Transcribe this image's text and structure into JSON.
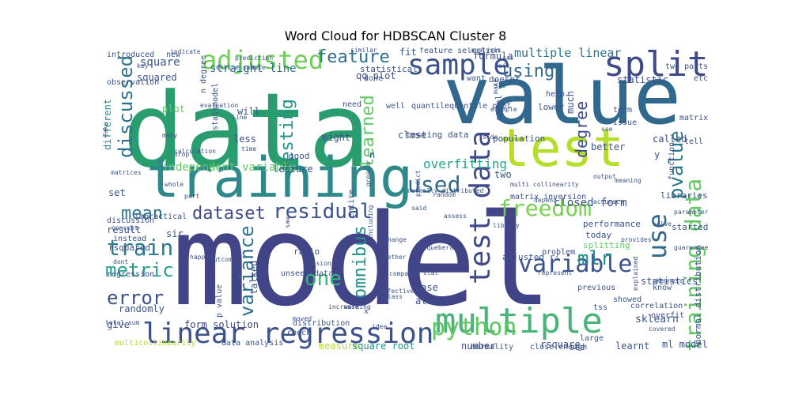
{
  "title": "Word Cloud for HDBSCAN Cluster 8",
  "words": [
    {
      "text": "model",
      "color": "#414487"
    },
    {
      "text": "data",
      "color": "#2a9d6e"
    },
    {
      "text": "value",
      "color": "#31688e"
    },
    {
      "text": "training",
      "color": "#2e8a8a"
    },
    {
      "text": "test",
      "color": "#b5de2b"
    },
    {
      "text": "linear regression",
      "color": "#3b528b"
    },
    {
      "text": "multiple",
      "color": "#4ab37a"
    },
    {
      "text": "split",
      "color": "#3e4a89"
    },
    {
      "text": "sample",
      "color": "#3b528b"
    },
    {
      "text": "adjusted",
      "color": "#6ece58"
    },
    {
      "text": "feature",
      "color": "#2c728e"
    },
    {
      "text": "discussed",
      "color": "#2c728e"
    },
    {
      "text": "testing",
      "color": "#21918c"
    },
    {
      "text": "learned",
      "color": "#5ec962"
    },
    {
      "text": "using",
      "color": "#31688e"
    },
    {
      "text": "degree",
      "color": "#3e4a89"
    },
    {
      "text": "use",
      "color": "#31688e"
    },
    {
      "text": "pvalue",
      "color": "#2a788e"
    },
    {
      "text": "training data",
      "color": "#5ec962"
    },
    {
      "text": "test data",
      "color": "#3e4a89"
    },
    {
      "text": "freedom",
      "color": "#7ad151"
    },
    {
      "text": "used",
      "color": "#31688e"
    },
    {
      "text": "residual",
      "color": "#3b528b"
    },
    {
      "text": "dataset",
      "color": "#3e4a89"
    },
    {
      "text": "mean",
      "color": "#2c728e"
    },
    {
      "text": "train",
      "color": "#287c8e"
    },
    {
      "text": "metric",
      "color": "#2a9d8f"
    },
    {
      "text": "error",
      "color": "#3b528b"
    },
    {
      "text": "variance",
      "color": "#2c728e"
    },
    {
      "text": "one",
      "color": "#35b779"
    },
    {
      "text": "omnibus",
      "color": "#21918c"
    },
    {
      "text": "variable",
      "color": "#3b528b"
    },
    {
      "text": "mlr",
      "color": "#21918c"
    },
    {
      "text": "python",
      "color": "#5ec962"
    },
    {
      "text": "multiple linear",
      "color": "#2c728e"
    },
    {
      "text": "overfitting",
      "color": "#20a486"
    },
    {
      "text": "straight line",
      "color": "#2c728e"
    },
    {
      "text": "square",
      "color": "#3b528b"
    },
    {
      "text": "squared",
      "color": "#3b528b"
    },
    {
      "text": "independent variable",
      "color": "#5ec962"
    },
    {
      "text": "closed form",
      "color": "#3b528b"
    },
    {
      "text": "form solution",
      "color": "#414487"
    },
    {
      "text": "randomly",
      "color": "#3b528b"
    },
    {
      "text": "multicollinearity",
      "color": "#b5de2b"
    },
    {
      "text": "data analysis",
      "color": "#3b528b"
    },
    {
      "text": "measure",
      "color": "#b5de2b"
    },
    {
      "text": "square root",
      "color": "#21918c"
    },
    {
      "text": "number",
      "color": "#3b528b"
    },
    {
      "text": "rsquare",
      "color": "#3b528b"
    },
    {
      "text": "learnt",
      "color": "#3b528b"
    },
    {
      "text": "sklearn",
      "color": "#3b528b"
    },
    {
      "text": "normal distribution",
      "color": "#3b528b"
    },
    {
      "text": "performance",
      "color": "#3b528b"
    },
    {
      "text": "splitting",
      "color": "#5ec962"
    },
    {
      "text": "today",
      "color": "#3b528b"
    },
    {
      "text": "libraries",
      "color": "#3b528b"
    },
    {
      "text": "started",
      "color": "#3b528b"
    },
    {
      "text": "lecture",
      "color": "#3b528b"
    },
    {
      "text": "good",
      "color": "#3b528b"
    },
    {
      "text": "might",
      "color": "#3b528b"
    },
    {
      "text": "testing data",
      "color": "#3b528b"
    },
    {
      "text": "population",
      "color": "#3b528b"
    },
    {
      "text": "formula",
      "color": "#3b528b"
    },
    {
      "text": "qq plot",
      "color": "#3b528b"
    },
    {
      "text": "statistic",
      "color": "#3b528b"
    },
    {
      "text": "statistical",
      "color": "#3b528b"
    },
    {
      "text": "fit",
      "color": "#3b528b"
    },
    {
      "text": "new",
      "color": "#3b528b"
    },
    {
      "text": "introduced",
      "color": "#3b528b"
    },
    {
      "text": "will",
      "color": "#3b528b"
    },
    {
      "text": "less",
      "color": "#3b528b"
    },
    {
      "text": "different",
      "color": "#21918c"
    },
    {
      "text": "plot",
      "color": "#5ec962"
    },
    {
      "text": "set",
      "color": "#3b528b"
    },
    {
      "text": "result",
      "color": "#3b528b"
    },
    {
      "text": "sir",
      "color": "#3b528b"
    },
    {
      "text": "rsquared",
      "color": "#3b528b"
    },
    {
      "text": "instead",
      "color": "#3b528b"
    },
    {
      "text": "regression",
      "color": "#3b528b"
    },
    {
      "text": "give",
      "color": "#3b528b"
    },
    {
      "text": "talked",
      "color": "#3b528b"
    },
    {
      "text": "unseen data",
      "color": "#3b528b"
    },
    {
      "text": "ratio",
      "color": "#3b528b"
    },
    {
      "text": "us",
      "color": "#3b528b"
    },
    {
      "text": "case",
      "color": "#3b528b"
    },
    {
      "text": "always",
      "color": "#3b528b"
    },
    {
      "text": "check",
      "color": "#3b528b"
    },
    {
      "text": "distribution",
      "color": "#3b528b"
    },
    {
      "text": "two",
      "color": "#3b528b"
    },
    {
      "text": "close",
      "color": "#3b528b"
    },
    {
      "text": "need",
      "color": "#3b528b"
    },
    {
      "text": "matrix",
      "color": "#3b528b"
    },
    {
      "text": "called",
      "color": "#3b528b"
    },
    {
      "text": "tell",
      "color": "#3b528b"
    },
    {
      "text": "better",
      "color": "#3b528b"
    },
    {
      "text": "know",
      "color": "#3b528b"
    },
    {
      "text": "statistics",
      "color": "#3b528b"
    },
    {
      "text": "much",
      "color": "#3b528b"
    },
    {
      "text": "help",
      "color": "#3b528b"
    },
    {
      "text": "doesnt",
      "color": "#3b528b"
    },
    {
      "text": "want",
      "color": "#3b528b"
    },
    {
      "text": "done",
      "color": "#3b528b"
    },
    {
      "text": "etc",
      "color": "#3b528b"
    },
    {
      "text": "y",
      "color": "#3b528b"
    },
    {
      "text": "n",
      "color": "#3b528b"
    },
    {
      "text": "overfit",
      "color": "#3b528b"
    },
    {
      "text": "problem",
      "color": "#3b528b"
    },
    {
      "text": "ml model",
      "color": "#3b528b"
    },
    {
      "text": "adjusted r²",
      "color": "#3b528b"
    },
    {
      "text": "matrix inversion",
      "color": "#3b528b"
    },
    {
      "text": "p value",
      "color": "#3b528b"
    },
    {
      "text": "entire",
      "color": "#3b528b"
    },
    {
      "text": "x",
      "color": "#3b528b"
    },
    {
      "text": "correlation",
      "color": "#3b528b"
    },
    {
      "text": "large",
      "color": "#3b528b"
    },
    {
      "text": "close enough",
      "color": "#3b528b"
    },
    {
      "text": "normality",
      "color": "#3b528b"
    },
    {
      "text": "see",
      "color": "#3b528b"
    },
    {
      "text": "showed",
      "color": "#3b528b"
    },
    {
      "text": "tss",
      "color": "#3b528b"
    },
    {
      "text": "issue",
      "color": "#3b528b"
    },
    {
      "text": "term",
      "color": "#3b528b"
    },
    {
      "text": "excel",
      "color": "#3b528b"
    },
    {
      "text": "lower",
      "color": "#3b528b"
    },
    {
      "text": "well",
      "color": "#3b528b"
    },
    {
      "text": "quantilequantile plot",
      "color": "#3b528b"
    },
    {
      "text": "n degree",
      "color": "#3b528b"
    },
    {
      "text": "statsmodel",
      "color": "#3b528b"
    },
    {
      "text": "feature selection",
      "color": "#3b528b"
    },
    {
      "text": "function",
      "color": "#3b528b"
    },
    {
      "text": "two parts",
      "color": "#3b528b"
    },
    {
      "text": "total sum",
      "color": "#3b528b"
    },
    {
      "text": "key",
      "color": "#3b528b"
    },
    {
      "text": "observation",
      "color": "#3b528b"
    },
    {
      "text": "indicate",
      "color": "#3b528b"
    },
    {
      "text": "entire sample",
      "color": "#3b528b"
    },
    {
      "text": "prediction",
      "color": "#3b528b"
    },
    {
      "text": "whether",
      "color": "#3b528b"
    },
    {
      "text": "effective",
      "color": "#3b528b"
    },
    {
      "text": "compare",
      "color": "#3b528b"
    },
    {
      "text": "represent",
      "color": "#3b528b"
    },
    {
      "text": "previous",
      "color": "#3b528b"
    },
    {
      "text": "working",
      "color": "#3b528b"
    },
    {
      "text": "idea",
      "color": "#3b528b"
    },
    {
      "text": "moved",
      "color": "#3b528b"
    },
    {
      "text": "analysis",
      "color": "#3b528b"
    },
    {
      "text": "similar",
      "color": "#3b528b"
    },
    {
      "text": "discussion",
      "color": "#3b528b"
    },
    {
      "text": "impractical",
      "color": "#3b528b"
    },
    {
      "text": "concept",
      "color": "#3b528b"
    },
    {
      "text": "part",
      "color": "#3b528b"
    },
    {
      "text": "matrices",
      "color": "#3b528b"
    },
    {
      "text": "dont",
      "color": "#3b528b"
    },
    {
      "text": "happen",
      "color": "#3b528b"
    },
    {
      "text": "outcome",
      "color": "#3b528b"
    },
    {
      "text": "session",
      "color": "#3b528b"
    },
    {
      "text": "class",
      "color": "#3b528b"
    },
    {
      "text": "increase",
      "color": "#3b528b"
    },
    {
      "text": "greater",
      "color": "#3b528b"
    },
    {
      "text": "predict",
      "color": "#3b528b"
    },
    {
      "text": "assess",
      "color": "#3b528b"
    },
    {
      "text": "random",
      "color": "#3b528b"
    },
    {
      "text": "normally distributed",
      "color": "#3b528b"
    },
    {
      "text": "library",
      "color": "#3b528b"
    },
    {
      "text": "jarquebera",
      "color": "#3b528b"
    },
    {
      "text": "change",
      "color": "#3b528b"
    },
    {
      "text": "stat",
      "color": "#3b528b"
    },
    {
      "text": "depend",
      "color": "#3b528b"
    },
    {
      "text": "accuracy",
      "color": "#3b528b"
    },
    {
      "text": "solve",
      "color": "#3b528b"
    },
    {
      "text": "provides",
      "color": "#3b528b"
    },
    {
      "text": "explained",
      "color": "#3b528b"
    },
    {
      "text": "skewness",
      "color": "#3b528b"
    },
    {
      "text": "covered",
      "color": "#3b528b"
    },
    {
      "text": "output",
      "color": "#3b528b"
    },
    {
      "text": "meaning",
      "color": "#3b528b"
    },
    {
      "text": "line",
      "color": "#3b528b"
    },
    {
      "text": "time",
      "color": "#3b528b"
    },
    {
      "text": "calculation",
      "color": "#3b528b"
    },
    {
      "text": "drop",
      "color": "#3b528b"
    },
    {
      "text": "many",
      "color": "#3b528b"
    },
    {
      "text": "whole",
      "color": "#3b528b"
    },
    {
      "text": "evaluation",
      "color": "#3b528b"
    },
    {
      "text": "aic",
      "color": "#3b528b"
    },
    {
      "text": "ssc",
      "color": "#3b528b"
    },
    {
      "text": "rss",
      "color": "#3b528b"
    },
    {
      "text": "sse",
      "color": "#3b528b"
    },
    {
      "text": "make",
      "color": "#3b528b"
    },
    {
      "text": "example",
      "color": "#3b528b"
    },
    {
      "text": "side",
      "color": "#3b528b"
    },
    {
      "text": "multi collinearity",
      "color": "#3b528b"
    },
    {
      "text": "including",
      "color": "#3b528b"
    },
    {
      "text": "said",
      "color": "#3b528b"
    },
    {
      "text": "saw",
      "color": "#3b528b"
    },
    {
      "text": "take",
      "color": "#3b528b"
    },
    {
      "text": "parameter",
      "color": "#3b528b"
    },
    {
      "text": "guarantee",
      "color": "#3b528b"
    }
  ]
}
